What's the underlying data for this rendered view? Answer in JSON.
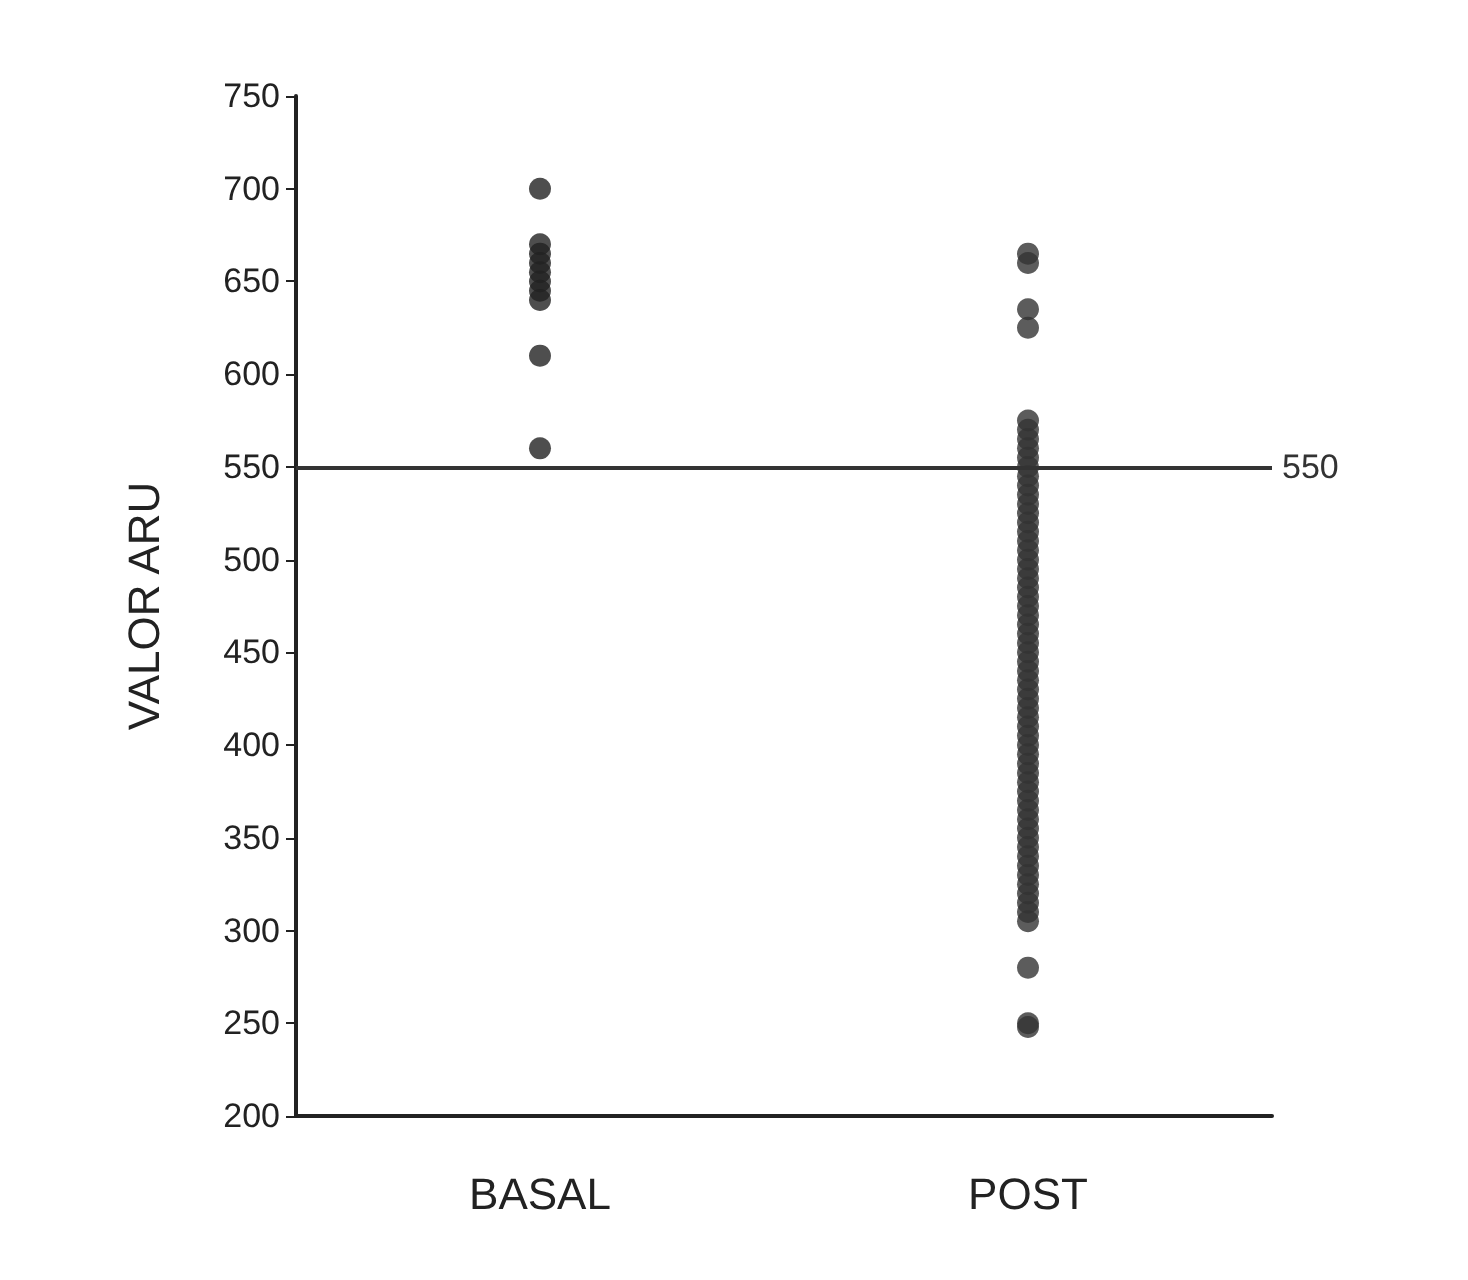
{
  "chart_data": {
    "type": "scatter",
    "ylabel": "VALOR ARU",
    "categories": [
      "BASAL",
      "POST"
    ],
    "series": [
      {
        "color": "#222222",
        "x": [
          "BASAL",
          "BASAL",
          "BASAL",
          "BASAL",
          "BASAL",
          "BASAL",
          "BASAL",
          "BASAL",
          "BASAL",
          "BASAL"
        ],
        "values": [
          700,
          670,
          665,
          660,
          655,
          650,
          645,
          640,
          610,
          560
        ]
      },
      {
        "color": "#333333",
        "x": [
          "POST",
          "POST",
          "POST",
          "POST",
          "POST",
          "POST",
          "POST",
          "POST",
          "POST",
          "POST",
          "POST",
          "POST",
          "POST",
          "POST",
          "POST",
          "POST",
          "POST",
          "POST",
          "POST",
          "POST",
          "POST",
          "POST",
          "POST",
          "POST",
          "POST",
          "POST",
          "POST",
          "POST",
          "POST",
          "POST",
          "POST",
          "POST",
          "POST",
          "POST",
          "POST",
          "POST",
          "POST",
          "POST",
          "POST",
          "POST",
          "POST",
          "POST",
          "POST",
          "POST",
          "POST",
          "POST",
          "POST",
          "POST",
          "POST",
          "POST",
          "POST",
          "POST",
          "POST",
          "POST",
          "POST",
          "POST",
          "POST",
          "POST",
          "POST",
          "POST",
          "POST",
          "POST"
        ],
        "values": [
          665,
          660,
          635,
          625,
          575,
          570,
          565,
          560,
          555,
          550,
          545,
          540,
          535,
          530,
          525,
          520,
          515,
          510,
          505,
          500,
          495,
          490,
          485,
          480,
          475,
          470,
          465,
          460,
          455,
          450,
          445,
          440,
          435,
          430,
          425,
          420,
          415,
          410,
          405,
          400,
          395,
          390,
          385,
          380,
          375,
          370,
          365,
          360,
          355,
          350,
          345,
          340,
          335,
          330,
          325,
          320,
          315,
          310,
          305,
          280,
          250,
          248
        ]
      }
    ],
    "ylim": [
      200,
      750
    ],
    "yticks": [
      200,
      250,
      300,
      350,
      400,
      450,
      500,
      550,
      600,
      650,
      700,
      750
    ],
    "ref_lines": [
      {
        "axis": "y",
        "value": 550,
        "label": "550",
        "color": "#333333"
      }
    ],
    "marker": "circle"
  }
}
